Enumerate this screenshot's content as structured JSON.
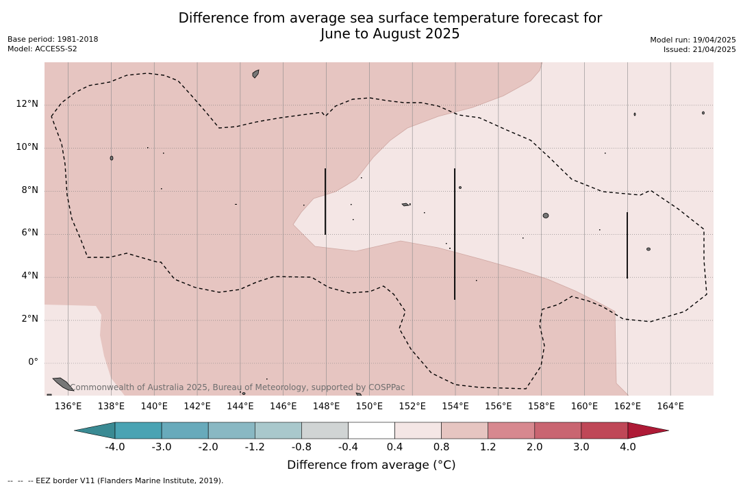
{
  "header": {
    "title_line1": "Difference from average sea surface temperature forecast for",
    "title_line2": "June to August 2025",
    "base_period": "Base period: 1981-2018",
    "model": "Model: ACCESS-S2",
    "model_run": "Model run: 19/04/2025",
    "issued": "Issued: 21/04/2025"
  },
  "map": {
    "lon_labels": [
      "136°E",
      "138°E",
      "140°E",
      "142°E",
      "144°E",
      "146°E",
      "148°E",
      "150°E",
      "152°E",
      "154°E",
      "156°E",
      "158°E",
      "160°E",
      "162°E",
      "164°E"
    ],
    "lat_labels": [
      "12°N",
      "10°N",
      "8°N",
      "6°N",
      "4°N",
      "2°N",
      "0°"
    ],
    "lon_range": [
      134.9,
      166.0
    ],
    "lat_range": [
      -1.5,
      14.0
    ],
    "copyright": "Commonwealth of Australia 2025, Bureau of Meteorology, supported by COSPPac"
  },
  "colorbar": {
    "labels": [
      "-4.0",
      "-3.0",
      "-2.0",
      "-1.2",
      "-0.8",
      "-0.4",
      "0.4",
      "0.8",
      "1.2",
      "2.0",
      "3.0",
      "4.0"
    ],
    "colors": [
      "#3a8a93",
      "#4aa3b3",
      "#68aabb",
      "#89b8c3",
      "#a9c8cc",
      "#d0d4d4",
      "#ffffff",
      "#f4e6e5",
      "#e6c5c1",
      "#d7888f",
      "#c96571",
      "#bf4757",
      "#ae1a36"
    ],
    "title": "Difference from average (°C)"
  },
  "footer": {
    "eez_note": "--  --  -- EEZ border V11 (Flanders Marine Institute, 2019)."
  }
}
